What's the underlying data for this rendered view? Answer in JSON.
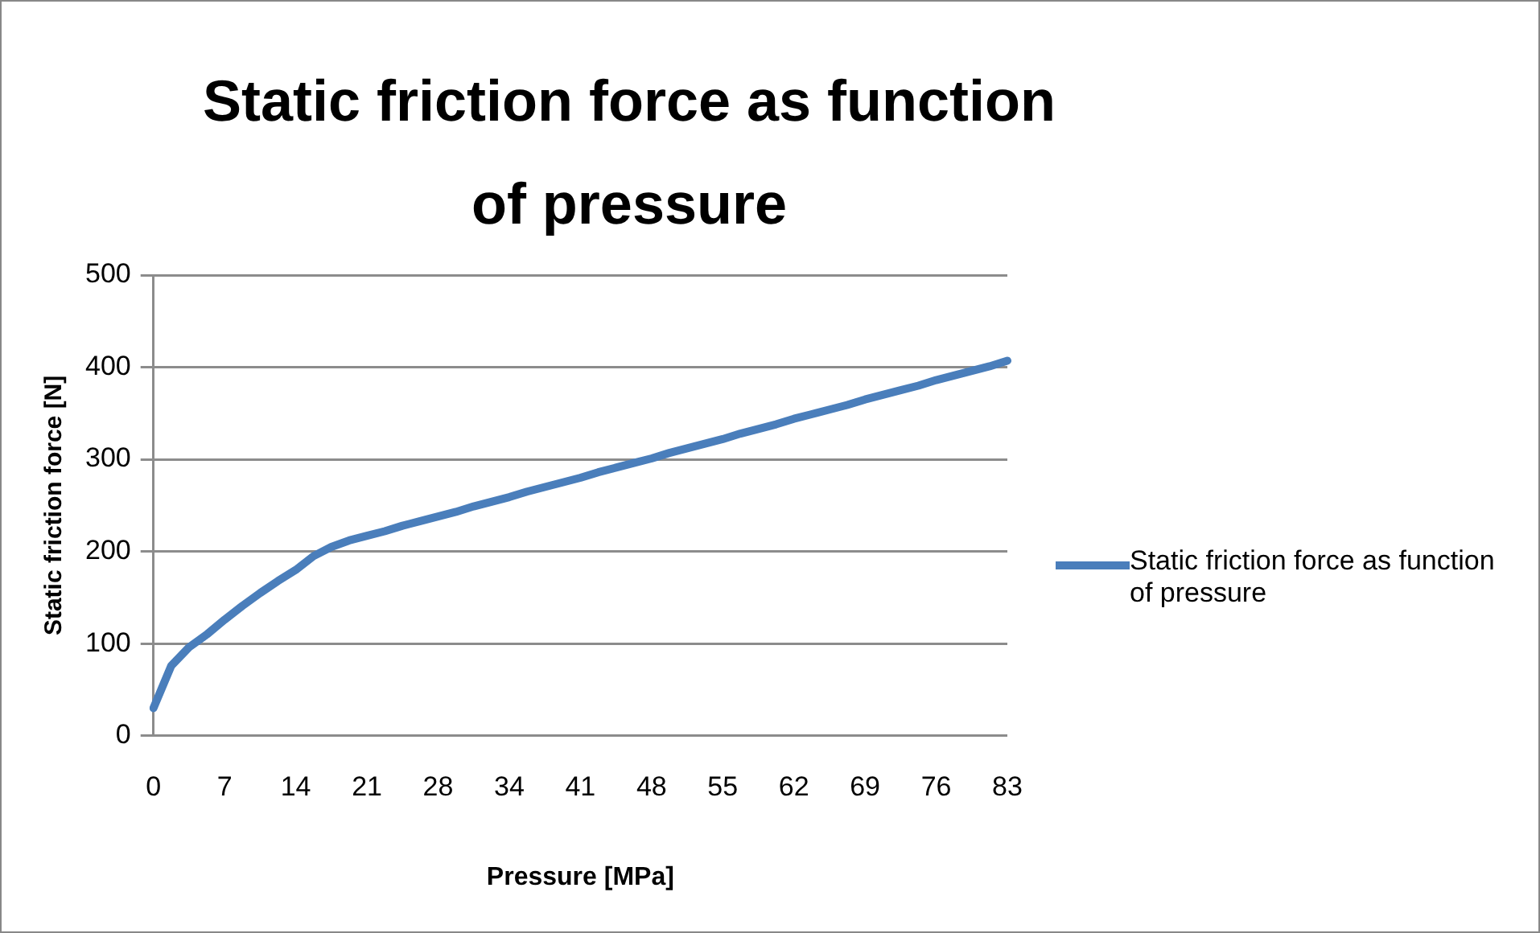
{
  "chart_data": {
    "type": "line",
    "title": "Static friction force as function of pressure",
    "xlabel": "Pressure [MPa]",
    "ylabel": "Static friction force [N]",
    "categories": [
      "0",
      null,
      null,
      null,
      "7",
      null,
      null,
      null,
      "14",
      null,
      null,
      null,
      "21",
      null,
      null,
      null,
      "28",
      null,
      null,
      null,
      "34",
      null,
      null,
      null,
      "41",
      null,
      null,
      null,
      "48",
      null,
      null,
      null,
      "55",
      null,
      null,
      null,
      "62",
      null,
      null,
      null,
      "69",
      null,
      null,
      null,
      "76",
      null,
      null,
      null,
      "83"
    ],
    "series": [
      {
        "name": "Static friction force as function of pressure",
        "color": "#4a7ebb",
        "values": [
          30,
          76,
          96,
          110,
          126,
          141,
          155,
          168,
          180,
          195,
          205,
          212,
          217,
          222,
          228,
          233,
          238,
          243,
          249,
          254,
          259,
          265,
          270,
          275,
          280,
          286,
          291,
          296,
          301,
          307,
          312,
          317,
          322,
          328,
          333,
          338,
          344,
          349,
          354,
          359,
          365,
          370,
          375,
          380,
          386,
          391,
          396,
          401,
          407
        ]
      }
    ],
    "ylim": [
      0,
      500
    ],
    "yticks": [
      0,
      100,
      200,
      300,
      400,
      500
    ],
    "grid": "y",
    "legend": "right"
  }
}
